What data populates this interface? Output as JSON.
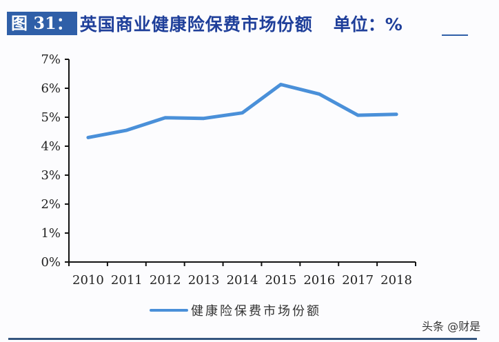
{
  "header": {
    "figure_label": "图 31：",
    "title": "英国商业健康险保费市场份额",
    "unit": "单位：%"
  },
  "legend": {
    "label": "健康险保费市场份额",
    "color": "#4a90d9"
  },
  "watermark": "头条 @财是",
  "colors": {
    "line": "#4a90d9",
    "title": "#1f3f9a",
    "figure_label_bg": "#2f5fa8",
    "footer_rule": "#34557f",
    "axis": "#111111"
  },
  "chart_data": {
    "type": "line",
    "title": "英国商业健康险保费市场份额",
    "xlabel": "",
    "ylabel": "",
    "unit": "%",
    "categories": [
      "2010",
      "2011",
      "2012",
      "2013",
      "2014",
      "2015",
      "2016",
      "2017",
      "2018"
    ],
    "series": [
      {
        "name": "健康险保费市场份额",
        "values": [
          4.3,
          4.55,
          4.98,
          4.96,
          5.15,
          6.13,
          5.8,
          5.07,
          5.1
        ]
      }
    ],
    "ylim": [
      0,
      7
    ],
    "yticks": [
      "0%",
      "1%",
      "2%",
      "3%",
      "4%",
      "5%",
      "6%",
      "7%"
    ],
    "grid": false,
    "legend_position": "bottom"
  }
}
